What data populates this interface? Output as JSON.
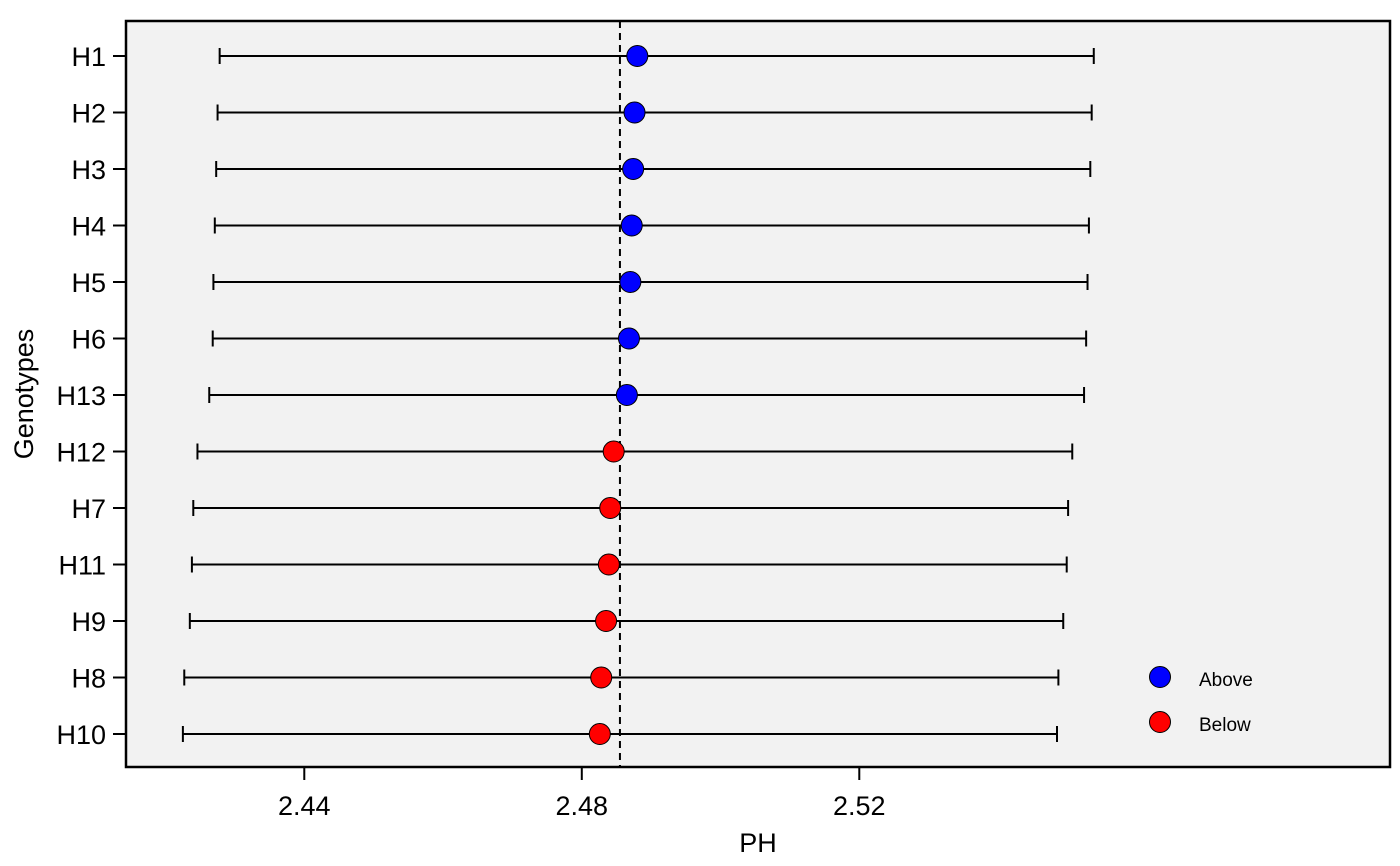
{
  "chart_data": {
    "type": "scatter",
    "title": "",
    "xlabel": "PH",
    "ylabel": "Genotypes",
    "xlim": [
      2.4143,
      2.5965
    ],
    "x_ticks": [
      "2.44",
      "2.48",
      "2.52"
    ],
    "x_tick_values": [
      2.44,
      2.48,
      2.52
    ],
    "reference_line": 2.4855,
    "grid": false,
    "legend_position": "bottom-right",
    "legend": [
      {
        "name": "Above",
        "color": "#0000ff"
      },
      {
        "name": "Below",
        "color": "#ff0000"
      }
    ],
    "points": [
      {
        "genotype": "H1",
        "value": 2.488,
        "lower": 2.4278,
        "upper": 2.5538,
        "group": "Above"
      },
      {
        "genotype": "H2",
        "value": 2.4876,
        "lower": 2.4275,
        "upper": 2.5535,
        "group": "Above"
      },
      {
        "genotype": "H3",
        "value": 2.4874,
        "lower": 2.4273,
        "upper": 2.5533,
        "group": "Above"
      },
      {
        "genotype": "H4",
        "value": 2.4872,
        "lower": 2.4271,
        "upper": 2.5531,
        "group": "Above"
      },
      {
        "genotype": "H5",
        "value": 2.487,
        "lower": 2.4269,
        "upper": 2.5529,
        "group": "Above"
      },
      {
        "genotype": "H6",
        "value": 2.4868,
        "lower": 2.4268,
        "upper": 2.5527,
        "group": "Above"
      },
      {
        "genotype": "H13",
        "value": 2.4865,
        "lower": 2.4263,
        "upper": 2.5524,
        "group": "Above"
      },
      {
        "genotype": "H12",
        "value": 2.4846,
        "lower": 2.4246,
        "upper": 2.5507,
        "group": "Below"
      },
      {
        "genotype": "H7",
        "value": 2.4841,
        "lower": 2.424,
        "upper": 2.5501,
        "group": "Below"
      },
      {
        "genotype": "H11",
        "value": 2.4839,
        "lower": 2.4238,
        "upper": 2.5499,
        "group": "Below"
      },
      {
        "genotype": "H9",
        "value": 2.4835,
        "lower": 2.4235,
        "upper": 2.5494,
        "group": "Below"
      },
      {
        "genotype": "H8",
        "value": 2.4828,
        "lower": 2.4227,
        "upper": 2.5487,
        "group": "Below"
      },
      {
        "genotype": "H10",
        "value": 2.4826,
        "lower": 2.4225,
        "upper": 2.5485,
        "group": "Below"
      }
    ]
  }
}
